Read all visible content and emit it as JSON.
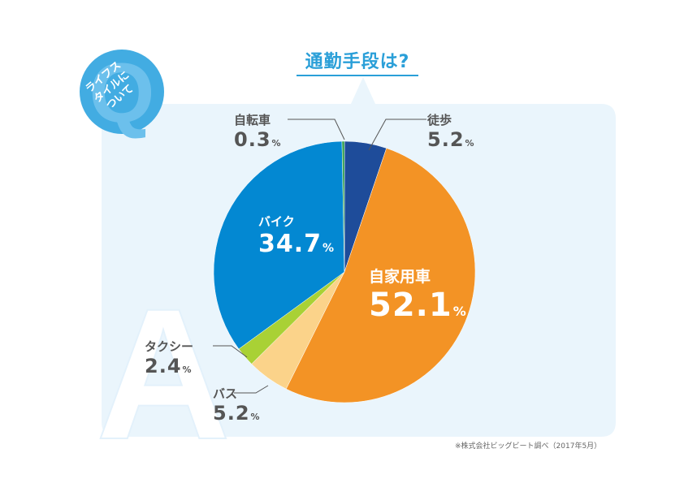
{
  "title": "通勤手段は?",
  "badge_text": "ライフス\nタイルに\nついて",
  "badge_letter": "Q",
  "answer_letter": "A",
  "source_note": "※株式会社ビッグビート調べ（2017年5月）",
  "colors": {
    "accent": "#2a9fd8",
    "panel": "#eaf5fc",
    "walking": "#1e4c9a",
    "car": "#f39325",
    "bus": "#fbd38a",
    "taxi": "#a9d135",
    "motorbike": "#0388d2",
    "bicycle": "#2e9d4a"
  },
  "chart_data": {
    "type": "pie",
    "title": "通勤手段は?",
    "start_angle_deg": 0,
    "direction": "clockwise",
    "slices": [
      {
        "label": "徒歩",
        "value": 5.2,
        "display": "5.2",
        "unit": "%",
        "color": "#1e4c9a"
      },
      {
        "label": "自家用車",
        "value": 52.1,
        "display": "52.1",
        "unit": "%",
        "color": "#f39325"
      },
      {
        "label": "バス",
        "value": 5.2,
        "display": "5.2",
        "unit": "%",
        "color": "#fbd38a"
      },
      {
        "label": "タクシー",
        "value": 2.4,
        "display": "2.4",
        "unit": "%",
        "color": "#a9d135"
      },
      {
        "label": "バイク",
        "value": 34.7,
        "display": "34.7",
        "unit": "%",
        "color": "#0388d2"
      },
      {
        "label": "自転車",
        "value": 0.3,
        "display": "0.3",
        "unit": "%",
        "color": "#2e9d4a"
      }
    ]
  }
}
